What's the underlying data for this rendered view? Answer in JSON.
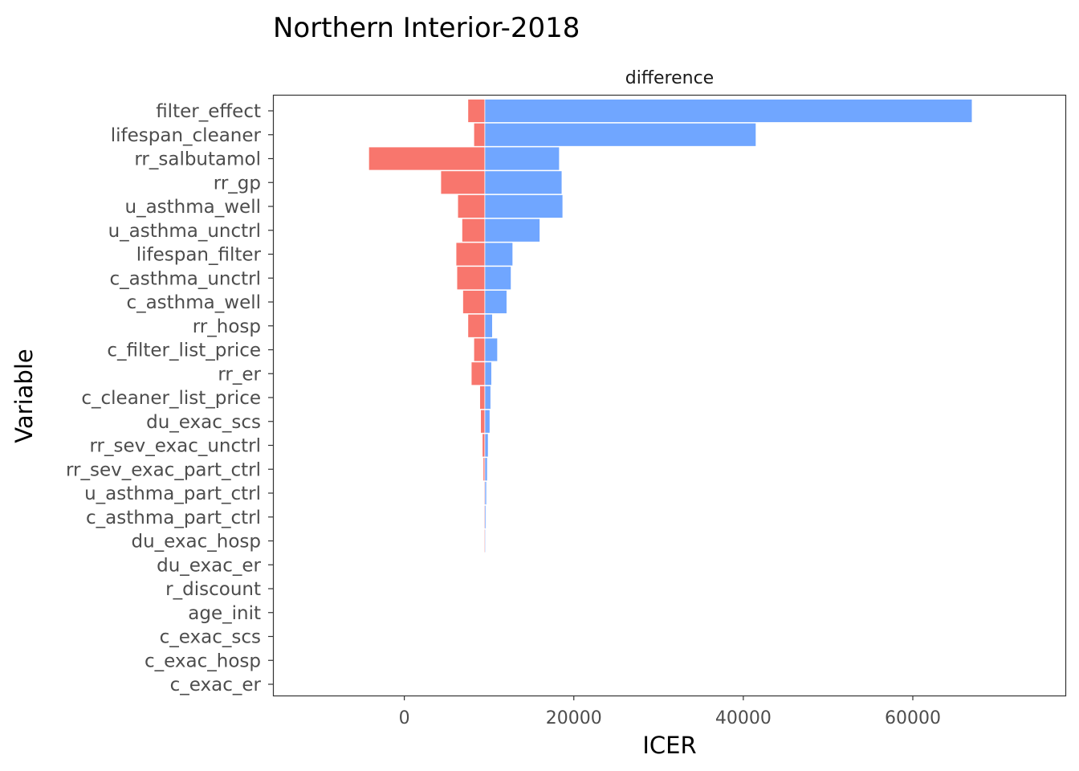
{
  "chart_data": {
    "type": "bar",
    "orientation": "horizontal",
    "subtype": "tornado",
    "title": "Northern Interior-2018",
    "facet_label": "difference",
    "xlabel": "ICER",
    "ylabel": "Variable",
    "xlim": [
      -15500,
      78000
    ],
    "xticks": [
      0,
      20000,
      40000,
      60000
    ],
    "xtick_labels": [
      "0",
      "20000",
      "40000",
      "60000"
    ],
    "base_value": 9500,
    "grid": false,
    "legend": "none",
    "colors": {
      "low": "#F8766D",
      "high": "#619CFF",
      "border": "#ffffff",
      "panel_border": "#333333"
    },
    "categories": [
      "filter_effect",
      "lifespan_cleaner",
      "rr_salbutamol",
      "rr_gp",
      "u_asthma_well",
      "u_asthma_unctrl",
      "lifespan_filter",
      "c_asthma_unctrl",
      "c_asthma_well",
      "rr_hosp",
      "c_filter_list_price",
      "rr_er",
      "c_cleaner_list_price",
      "du_exac_scs",
      "rr_sev_exac_unctrl",
      "rr_sev_exac_part_ctrl",
      "u_asthma_part_ctrl",
      "c_asthma_part_ctrl",
      "du_exac_hosp",
      "du_exac_er",
      "r_discount",
      "age_init",
      "c_exac_scs",
      "c_exac_hosp",
      "c_exac_er"
    ],
    "series": [
      {
        "values": [
          7500,
          8200,
          -4200,
          4300,
          6300,
          6800,
          6100,
          6200,
          6900,
          7500,
          8200,
          7900,
          8900,
          9000,
          9200,
          9300,
          9400,
          9400,
          9400,
          9450,
          9470,
          9480,
          9500,
          9500,
          9500
        ]
      },
      {
        "values": [
          67000,
          41500,
          18300,
          18600,
          18700,
          16000,
          12800,
          12600,
          12100,
          10400,
          11000,
          10300,
          10200,
          10100,
          9900,
          9800,
          9700,
          9650,
          9600,
          9550,
          9520,
          9510,
          9500,
          9500,
          9500
        ]
      }
    ]
  }
}
